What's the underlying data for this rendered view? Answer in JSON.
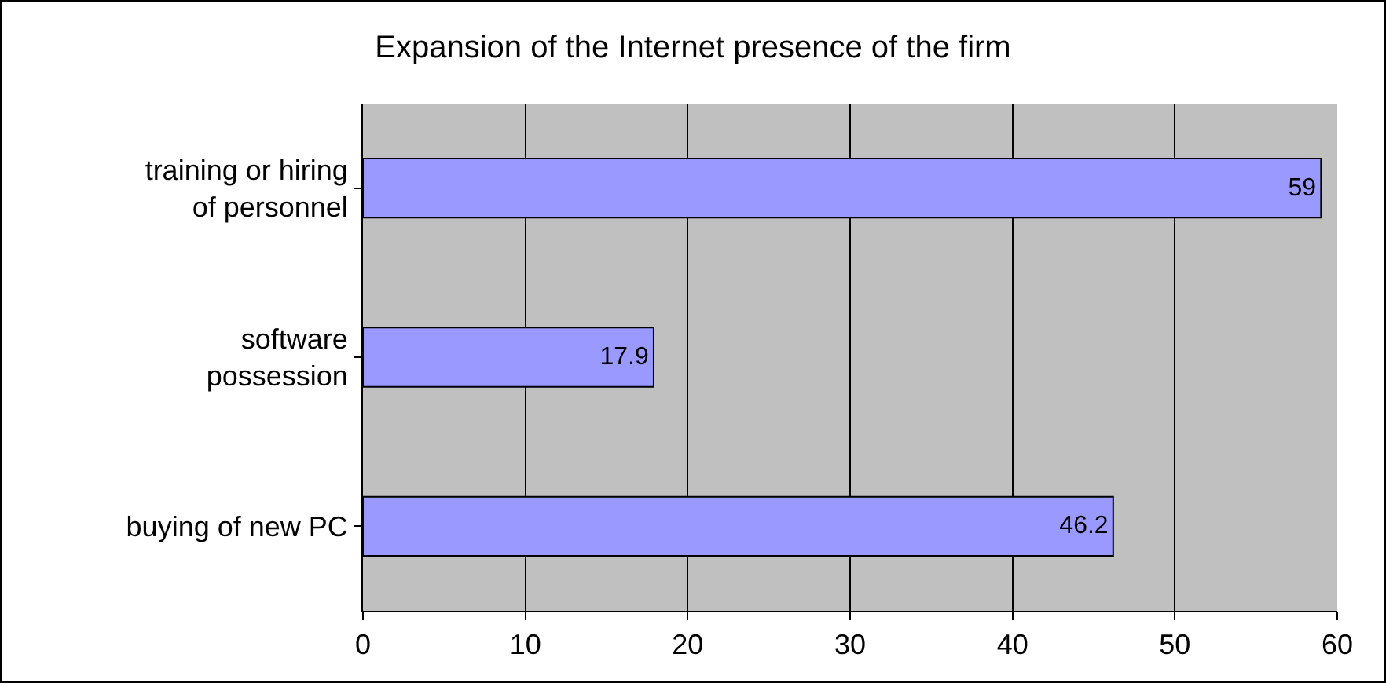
{
  "chart_data": {
    "type": "bar",
    "orientation": "horizontal",
    "title": "Expansion of the Internet presence of the firm",
    "categories": [
      "training or hiring of personnel",
      "software possession",
      "buying of new PC"
    ],
    "values": [
      59,
      17.9,
      46.2
    ],
    "color": "#9999ff",
    "xlim": [
      0,
      60
    ],
    "xticks": [
      0,
      10,
      20,
      30,
      40,
      50,
      60
    ],
    "grid": "x",
    "data_labels": true
  }
}
